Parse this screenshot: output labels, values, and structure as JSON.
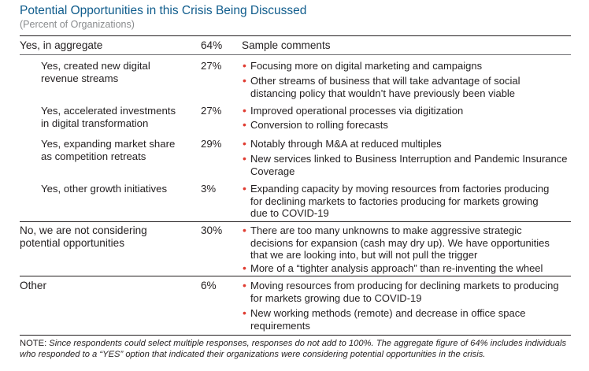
{
  "title": "Potential Opportunities in this Crisis Being Discussed",
  "subtitle": "(Percent of Organizations)",
  "header": {
    "label": "Yes, in aggregate",
    "pct": "64%",
    "comments_heading": "Sample comments"
  },
  "sections": [
    {
      "label_lines": [
        "Yes, created new digital",
        "revenue streams"
      ],
      "pct": "27%",
      "bullets": [
        [
          "Focusing more on digital marketing and campaigns"
        ],
        [
          "Other streams of business that will take advantage of social",
          "distancing policy that wouldn’t have previously been viable"
        ]
      ]
    },
    {
      "label_lines": [
        "Yes, accelerated investments",
        "in digital transformation"
      ],
      "pct": "27%",
      "bullets": [
        [
          "Improved operational processes via digitization"
        ],
        [
          "Conversion to rolling forecasts"
        ]
      ]
    },
    {
      "label_lines": [
        "Yes, expanding market share",
        "as competition retreats"
      ],
      "pct": "29%",
      "bullets": [
        [
          "Notably through M&A at reduced multiples"
        ],
        [
          "New services linked to Business Interruption and Pandemic Insurance",
          "Coverage"
        ]
      ]
    },
    {
      "label_lines": [
        "Yes, other growth initiatives"
      ],
      "pct": "3%",
      "bullets": [
        [
          "Expanding capacity by moving resources from factories producing",
          "for declining markets to factories producing for markets growing",
          "due to COVID-19"
        ]
      ]
    },
    {
      "label_lines": [
        "No, we are not considering",
        "potential opportunities"
      ],
      "pct": "30%",
      "bullets": [
        [
          "There are too many unknowns to make aggressive strategic",
          "decisions for expansion (cash may dry up). We have opportunities",
          "that we are looking into, but will not pull the trigger"
        ],
        [
          "More of a “tighter analysis approach” than re-inventing the wheel"
        ]
      ]
    },
    {
      "label_lines": [
        "Other"
      ],
      "pct": "6%",
      "bullets": [
        [
          "Moving resources from producing for declining markets to producing",
          "for markets growing due to COVID-19"
        ],
        [
          "New working methods (remote) and decrease in office space",
          "requirements"
        ]
      ]
    }
  ],
  "note": {
    "prefix": "NOTE: ",
    "text": "Since respondents could select multiple responses, responses do not add to 100%. The aggregate figure of 64% includes individuals who responded to a “YES” option that indicated their organizations were considering potential opportunities in the crisis."
  }
}
